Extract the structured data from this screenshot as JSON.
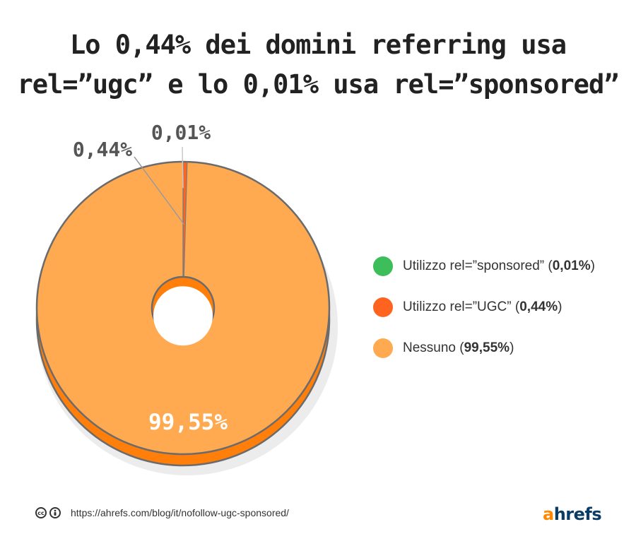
{
  "title_lines": [
    "Lo 0,44% dei domini referring usa",
    "rel=”ugc” e lo 0,01% usa rel=”sponsored”"
  ],
  "chart_data": {
    "type": "pie",
    "style": "donut-3d",
    "title": "Lo 0,44% dei domini referring usa rel=”ugc” e lo 0,01% usa rel=”sponsored”",
    "slices": [
      {
        "label": "Utilizzo rel=”sponsored”",
        "value": 0.01,
        "value_label": "0,01%",
        "color": "#3dbe5a"
      },
      {
        "label": "Utilizzo rel=”UGC”",
        "value": 0.44,
        "value_label": "0,44%",
        "color": "#ff6320"
      },
      {
        "label": "Nessuno",
        "value": 99.55,
        "value_label": "99,55%",
        "color": "#ffaa50"
      }
    ],
    "legend_position": "right",
    "side_color": "#ff7f0a"
  },
  "legend": [
    {
      "label": "Utilizzo rel=”sponsored”",
      "value": "0,01%",
      "color": "#3dbe5a"
    },
    {
      "label": "Utilizzo rel=”UGC”",
      "value": "0,44%",
      "color": "#ff6320"
    },
    {
      "label": "Nessuno",
      "value": "99,55%",
      "color": "#ffaa50"
    }
  ],
  "footer": {
    "cc_icons": [
      "cc-icon",
      "attribution-icon"
    ],
    "cc_text": "cc",
    "url": "https://ahrefs.com/blog/it/nofollow-ugc-sponsored/"
  },
  "logo": {
    "first": "a",
    "rest": "hrefs"
  }
}
